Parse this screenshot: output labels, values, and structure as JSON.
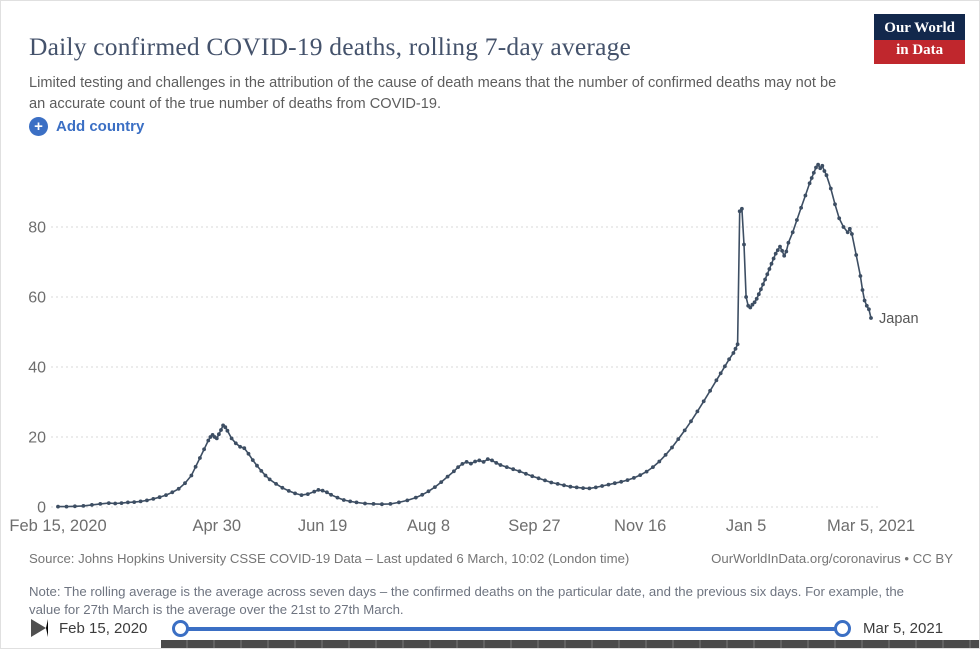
{
  "header": {
    "title": "Daily confirmed COVID-19 deaths, rolling 7-day average",
    "subtitle": "Limited testing and challenges in the attribution of the cause of death means that the number of confirmed deaths may not be an accurate count of the true number of deaths from COVID-19.",
    "logo": {
      "line1": "Our World",
      "line2": "in Data"
    }
  },
  "controls": {
    "add_country": "Add country"
  },
  "chart_data": {
    "type": "line",
    "title": "Daily confirmed COVID-19 deaths, rolling 7-day average",
    "xlabel": "",
    "ylabel": "",
    "x_unit": "days since Feb 15, 2020",
    "xlim": [
      0,
      384
    ],
    "ylim": [
      0,
      100
    ],
    "grid": "dashed-horizontal",
    "y_ticks": [
      0,
      20,
      40,
      60,
      80
    ],
    "x_ticks": [
      {
        "day": 0,
        "label": "Feb 15, 2020"
      },
      {
        "day": 75,
        "label": "Apr 30"
      },
      {
        "day": 125,
        "label": "Jun 19"
      },
      {
        "day": 175,
        "label": "Aug 8"
      },
      {
        "day": 225,
        "label": "Sep 27"
      },
      {
        "day": 275,
        "label": "Nov 16"
      },
      {
        "day": 325,
        "label": "Jan 5"
      },
      {
        "day": 384,
        "label": "Mar 5, 2021"
      }
    ],
    "line_color": "#3d4e63",
    "end_label": "Japan",
    "series": [
      {
        "name": "Japan",
        "points": [
          [
            0,
            0.1
          ],
          [
            4,
            0.1
          ],
          [
            8,
            0.2
          ],
          [
            12,
            0.3
          ],
          [
            16,
            0.6
          ],
          [
            20,
            0.9
          ],
          [
            24,
            1.1
          ],
          [
            27,
            1.0
          ],
          [
            30,
            1.1
          ],
          [
            33,
            1.3
          ],
          [
            36,
            1.4
          ],
          [
            39,
            1.6
          ],
          [
            42,
            1.9
          ],
          [
            45,
            2.3
          ],
          [
            48,
            2.8
          ],
          [
            51,
            3.4
          ],
          [
            54,
            4.2
          ],
          [
            57,
            5.2
          ],
          [
            60,
            6.8
          ],
          [
            63,
            9.0
          ],
          [
            65,
            11.5
          ],
          [
            67,
            14.0
          ],
          [
            69,
            16.5
          ],
          [
            71,
            19.0
          ],
          [
            72,
            20.0
          ],
          [
            73,
            20.6
          ],
          [
            74,
            20.0
          ],
          [
            75,
            19.6
          ],
          [
            76,
            20.8
          ],
          [
            77,
            22.0
          ],
          [
            78,
            23.3
          ],
          [
            79,
            22.8
          ],
          [
            80,
            21.8
          ],
          [
            82,
            19.6
          ],
          [
            84,
            18.2
          ],
          [
            86,
            17.2
          ],
          [
            88,
            16.8
          ],
          [
            90,
            15.2
          ],
          [
            92,
            13.4
          ],
          [
            94,
            11.8
          ],
          [
            96,
            10.3
          ],
          [
            98,
            9.0
          ],
          [
            100,
            7.9
          ],
          [
            103,
            6.6
          ],
          [
            106,
            5.5
          ],
          [
            109,
            4.6
          ],
          [
            112,
            3.9
          ],
          [
            115,
            3.4
          ],
          [
            118,
            3.7
          ],
          [
            121,
            4.4
          ],
          [
            123,
            4.9
          ],
          [
            125,
            4.7
          ],
          [
            127,
            4.2
          ],
          [
            129,
            3.5
          ],
          [
            132,
            2.7
          ],
          [
            135,
            2.0
          ],
          [
            138,
            1.6
          ],
          [
            141,
            1.3
          ],
          [
            145,
            1.0
          ],
          [
            149,
            0.9
          ],
          [
            153,
            0.8
          ],
          [
            157,
            0.9
          ],
          [
            161,
            1.3
          ],
          [
            165,
            1.9
          ],
          [
            169,
            2.7
          ],
          [
            172,
            3.5
          ],
          [
            175,
            4.5
          ],
          [
            178,
            5.7
          ],
          [
            181,
            7.1
          ],
          [
            184,
            8.7
          ],
          [
            187,
            10.2
          ],
          [
            189,
            11.4
          ],
          [
            191,
            12.3
          ],
          [
            193,
            12.9
          ],
          [
            195,
            12.4
          ],
          [
            197,
            13.0
          ],
          [
            199,
            13.3
          ],
          [
            201,
            12.9
          ],
          [
            203,
            13.7
          ],
          [
            205,
            13.3
          ],
          [
            207,
            12.6
          ],
          [
            209,
            12.0
          ],
          [
            212,
            11.4
          ],
          [
            215,
            10.8
          ],
          [
            218,
            10.2
          ],
          [
            221,
            9.5
          ],
          [
            224,
            8.8
          ],
          [
            227,
            8.2
          ],
          [
            230,
            7.6
          ],
          [
            233,
            7.0
          ],
          [
            236,
            6.6
          ],
          [
            239,
            6.2
          ],
          [
            242,
            5.8
          ],
          [
            245,
            5.6
          ],
          [
            248,
            5.4
          ],
          [
            251,
            5.3
          ],
          [
            254,
            5.6
          ],
          [
            257,
            6.0
          ],
          [
            260,
            6.4
          ],
          [
            263,
            6.8
          ],
          [
            266,
            7.2
          ],
          [
            269,
            7.7
          ],
          [
            272,
            8.3
          ],
          [
            275,
            9.1
          ],
          [
            278,
            10.1
          ],
          [
            281,
            11.4
          ],
          [
            284,
            13.0
          ],
          [
            287,
            14.9
          ],
          [
            290,
            17.0
          ],
          [
            293,
            19.4
          ],
          [
            296,
            21.9
          ],
          [
            299,
            24.5
          ],
          [
            302,
            27.3
          ],
          [
            305,
            30.2
          ],
          [
            308,
            33.2
          ],
          [
            311,
            36.2
          ],
          [
            313,
            38.2
          ],
          [
            315,
            40.2
          ],
          [
            317,
            42.2
          ],
          [
            319,
            44.0
          ],
          [
            320,
            45.2
          ],
          [
            321,
            46.5
          ],
          [
            322,
            84.5
          ],
          [
            323,
            85.2
          ],
          [
            324,
            75.0
          ],
          [
            325,
            60.0
          ],
          [
            326,
            57.5
          ],
          [
            327,
            57.0
          ],
          [
            328,
            57.8
          ],
          [
            329,
            58.5
          ],
          [
            330,
            59.5
          ],
          [
            331,
            60.8
          ],
          [
            332,
            62.2
          ],
          [
            333,
            63.6
          ],
          [
            334,
            65.0
          ],
          [
            335,
            66.5
          ],
          [
            336,
            68.0
          ],
          [
            337,
            69.5
          ],
          [
            338,
            71.0
          ],
          [
            339,
            72.4
          ],
          [
            340,
            73.4
          ],
          [
            341,
            74.4
          ],
          [
            342,
            73.2
          ],
          [
            343,
            71.8
          ],
          [
            344,
            73.0
          ],
          [
            345,
            75.5
          ],
          [
            347,
            78.5
          ],
          [
            349,
            82.0
          ],
          [
            351,
            85.5
          ],
          [
            353,
            89.0
          ],
          [
            355,
            92.5
          ],
          [
            356,
            94.0
          ],
          [
            357,
            95.5
          ],
          [
            358,
            97.0
          ],
          [
            359,
            97.8
          ],
          [
            360,
            96.8
          ],
          [
            361,
            97.5
          ],
          [
            362,
            96.0
          ],
          [
            363,
            94.8
          ],
          [
            365,
            91.0
          ],
          [
            367,
            86.5
          ],
          [
            369,
            82.5
          ],
          [
            371,
            80.0
          ],
          [
            373,
            78.5
          ],
          [
            374,
            79.5
          ],
          [
            375,
            78.0
          ],
          [
            377,
            72.0
          ],
          [
            379,
            66.0
          ],
          [
            380,
            62.0
          ],
          [
            381,
            59.0
          ],
          [
            382,
            57.5
          ],
          [
            383,
            56.5
          ],
          [
            384,
            54.0
          ]
        ]
      }
    ]
  },
  "footer": {
    "source_left": "Source: Johns Hopkins University CSSE COVID-19 Data – Last updated 6 March, 10:02 (London time)",
    "source_right": "OurWorldInData.org/coronavirus • CC BY",
    "note": "Note: The rolling average is the average across seven days – the confirmed deaths on the particular date, and the previous six days. For example, the value for 27th March is the average over the 21st to 27th March."
  },
  "timeline": {
    "start_label": "Feb 15, 2020",
    "end_label": "Mar 5, 2021"
  },
  "colors": {
    "accent_blue": "#3b6fc4",
    "slider_blue": "#3b6fc4",
    "line": "#3d4e63",
    "grid": "#dadada",
    "axis_text": "#6e6e6e",
    "title": "#44526b",
    "brand_navy": "#12284c",
    "brand_red": "#c0272d"
  }
}
